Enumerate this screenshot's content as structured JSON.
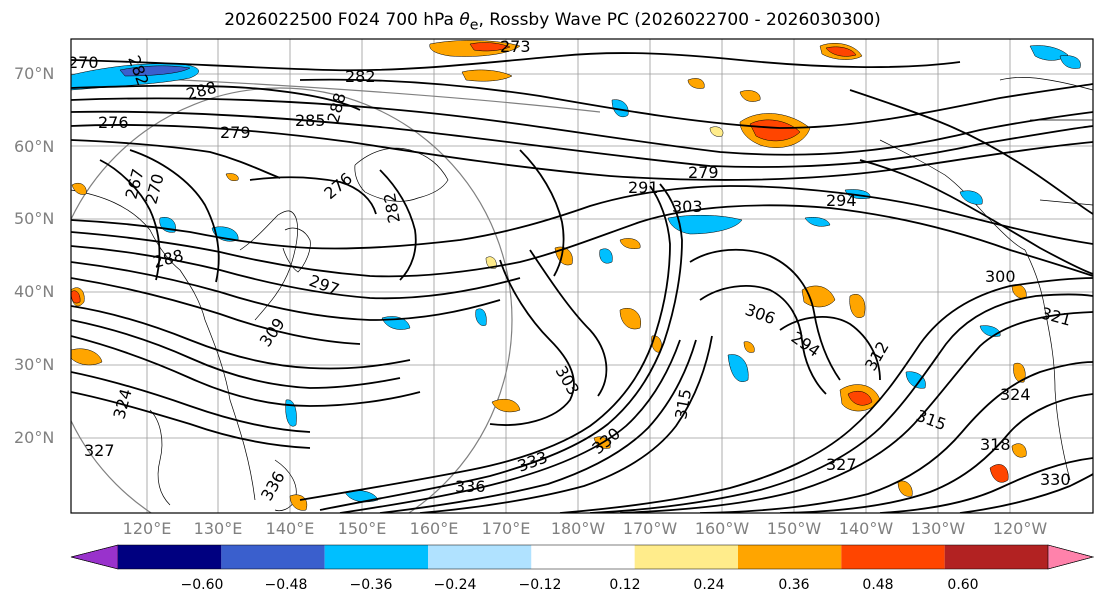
{
  "title": {
    "prefix": "2026022500 F024 700 hPa ",
    "theta": "θ",
    "subscript": "e",
    "suffix": ", Rossby Wave PC (2026022700 - 2026030300)"
  },
  "map": {
    "lat_labels": [
      "70°N",
      "60°N",
      "50°N",
      "40°N",
      "30°N",
      "20°N"
    ],
    "lon_labels": [
      "120°E",
      "130°E",
      "140°E",
      "150°E",
      "160°E",
      "170°E",
      "180°W",
      "170°W",
      "160°W",
      "150°W",
      "140°W",
      "130°W",
      "120°W"
    ],
    "contour_labels": [
      "282",
      "270",
      "282",
      "288",
      "288",
      "276",
      "279",
      "285",
      "267",
      "270",
      "276",
      "282",
      "273",
      "288",
      "297",
      "291",
      "279",
      "303",
      "294",
      "300",
      "306",
      "294",
      "321",
      "309",
      "303",
      "315",
      "330",
      "312",
      "327",
      "324",
      "315",
      "318",
      "333",
      "336",
      "336",
      "327",
      "330",
      "324"
    ]
  },
  "colorbar": {
    "ticks": [
      "−0.60",
      "−0.48",
      "−0.36",
      "−0.24",
      "−0.12",
      "0.12",
      "0.24",
      "0.36",
      "0.48",
      "0.60"
    ],
    "colors": [
      "#9932cc",
      "#000080",
      "#3a5fcd",
      "#00bfff",
      "#b0e2ff",
      "#ffffff",
      "#ffec8b",
      "#ffa500",
      "#ff4500",
      "#b22222",
      "#ff82ab"
    ]
  }
}
